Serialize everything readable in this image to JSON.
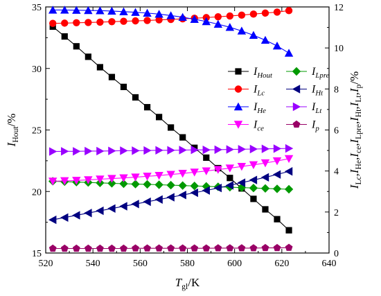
{
  "chart_data": {
    "type": "line",
    "x_axis": {
      "label_main": "T",
      "label_sub": "gl",
      "label_suffix": "/K",
      "range": [
        520,
        640
      ],
      "ticks": [
        "520",
        "540",
        "560",
        "580",
        "600",
        "620",
        "640"
      ]
    },
    "y_left": {
      "label_main": "I",
      "label_sub": "Hout",
      "label_suffix": "/%",
      "range": [
        15,
        35
      ],
      "ticks": [
        "15",
        "20",
        "25",
        "30",
        "35"
      ]
    },
    "y_right": {
      "label_segments": [
        {
          "t": "I",
          "sub": false
        },
        {
          "t": "Lc",
          "sub": true
        },
        {
          "t": ",",
          "sub": false
        },
        {
          "t": "I",
          "sub": false
        },
        {
          "t": "He",
          "sub": true
        },
        {
          "t": ",",
          "sub": false
        },
        {
          "t": "I",
          "sub": false
        },
        {
          "t": "ce",
          "sub": true
        },
        {
          "t": ",",
          "sub": false
        },
        {
          "t": "I",
          "sub": false
        },
        {
          "t": "Lpre",
          "sub": true
        },
        {
          "t": ",",
          "sub": false
        },
        {
          "t": "I",
          "sub": false
        },
        {
          "t": "Ht",
          "sub": true
        },
        {
          "t": ",",
          "sub": false
        },
        {
          "t": "I",
          "sub": false
        },
        {
          "t": "Lt",
          "sub": true
        },
        {
          "t": ",",
          "sub": false
        },
        {
          "t": "I",
          "sub": false
        },
        {
          "t": "p",
          "sub": true
        },
        {
          "t": "/%",
          "sub": false
        }
      ],
      "range": [
        0,
        12
      ],
      "ticks": [
        "0",
        "2",
        "4",
        "6",
        "8",
        "10",
        "12"
      ]
    },
    "x": [
      523,
      528,
      533,
      538,
      543,
      548,
      553,
      558,
      563,
      568,
      573,
      578,
      583,
      588,
      593,
      598,
      603,
      608,
      613,
      618,
      623
    ],
    "series": [
      {
        "key": "hout",
        "legend_main": "I",
        "legend_sub": "Hout",
        "axis": "left",
        "color": "#000000",
        "marker": "square",
        "values": [
          33.4,
          32.6,
          31.8,
          30.95,
          30.1,
          29.3,
          28.5,
          27.65,
          26.85,
          26.05,
          25.2,
          24.4,
          23.55,
          22.75,
          21.9,
          21.1,
          20.25,
          19.4,
          18.55,
          17.75,
          16.85
        ]
      },
      {
        "key": "lpre",
        "legend_main": "I",
        "legend_sub": "Lpre",
        "axis": "right",
        "color": "#009900",
        "marker": "diamond",
        "values": [
          3.5,
          3.48,
          3.46,
          3.44,
          3.42,
          3.4,
          3.38,
          3.36,
          3.35,
          3.33,
          3.31,
          3.29,
          3.27,
          3.25,
          3.23,
          3.21,
          3.19,
          3.17,
          3.15,
          3.13,
          3.11
        ]
      },
      {
        "key": "lc",
        "legend_main": "I",
        "legend_sub": "Lc",
        "axis": "right",
        "color": "#ff0000",
        "marker": "circle",
        "values": [
          11.2,
          11.21,
          11.23,
          11.24,
          11.26,
          11.28,
          11.3,
          11.32,
          11.34,
          11.37,
          11.39,
          11.42,
          11.45,
          11.48,
          11.52,
          11.56,
          11.6,
          11.65,
          11.7,
          11.75,
          11.82
        ]
      },
      {
        "key": "ht",
        "legend_main": "I",
        "legend_sub": "Ht",
        "axis": "right",
        "color": "#000080",
        "marker": "tri-left",
        "values": [
          1.62,
          1.73,
          1.84,
          1.95,
          2.06,
          2.17,
          2.28,
          2.39,
          2.5,
          2.61,
          2.72,
          2.83,
          2.94,
          3.05,
          3.17,
          3.3,
          3.43,
          3.56,
          3.69,
          3.83,
          3.98
        ]
      },
      {
        "key": "he",
        "legend_main": "I",
        "legend_sub": "He",
        "axis": "right",
        "color": "#0000ff",
        "marker": "tri-up",
        "values": [
          11.85,
          11.85,
          11.84,
          11.83,
          11.82,
          11.8,
          11.77,
          11.74,
          11.7,
          11.65,
          11.58,
          11.5,
          11.4,
          11.29,
          11.16,
          11.01,
          10.83,
          10.62,
          10.38,
          10.1,
          9.75
        ]
      },
      {
        "key": "lt",
        "legend_main": "I",
        "legend_sub": "Lt",
        "axis": "right",
        "color": "#9900ff",
        "marker": "tri-right",
        "values": [
          4.95,
          4.96,
          4.96,
          4.97,
          4.97,
          4.98,
          4.99,
          4.99,
          5.0,
          5.01,
          5.01,
          5.02,
          5.03,
          5.03,
          5.04,
          5.05,
          5.06,
          5.07,
          5.08,
          5.09,
          5.1
        ]
      },
      {
        "key": "ce",
        "legend_main": "I",
        "legend_sub": "ce",
        "axis": "right",
        "color": "#ff00ff",
        "marker": "tri-down",
        "values": [
          3.5,
          3.52,
          3.54,
          3.57,
          3.6,
          3.63,
          3.66,
          3.7,
          3.74,
          3.78,
          3.83,
          3.88,
          3.94,
          4.0,
          4.07,
          4.14,
          4.22,
          4.3,
          4.39,
          4.49,
          4.6
        ]
      },
      {
        "key": "p",
        "legend_main": "I",
        "legend_sub": "p",
        "axis": "right",
        "color": "#990066",
        "marker": "pentagon",
        "values": [
          0.22,
          0.22,
          0.22,
          0.22,
          0.22,
          0.22,
          0.22,
          0.23,
          0.23,
          0.23,
          0.23,
          0.23,
          0.23,
          0.23,
          0.24,
          0.24,
          0.24,
          0.24,
          0.25,
          0.25,
          0.26
        ]
      }
    ],
    "legend": {
      "placement": "inside-right",
      "order": [
        "hout",
        "lpre",
        "lc",
        "ht",
        "he",
        "lt",
        "ce",
        "p"
      ]
    },
    "grid": false
  }
}
